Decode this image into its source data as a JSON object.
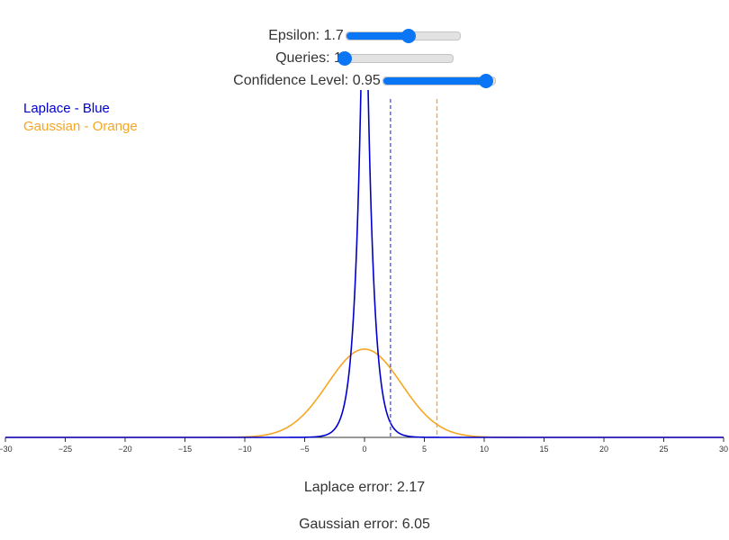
{
  "controls": {
    "epsilon": {
      "label": "Epsilon: ",
      "value": "1.7",
      "min": 0.1,
      "max": 3,
      "current": 1.7
    },
    "queries": {
      "label": "Queries: ",
      "value": "1",
      "min": 1,
      "max": 100,
      "current": 1
    },
    "confidence": {
      "label": "Confidence Level: ",
      "value": "0.95",
      "min": 0.5,
      "max": 0.99,
      "current": 0.95
    }
  },
  "legend": {
    "laplace": "Laplace - Blue",
    "gaussian": "Gaussian - Orange"
  },
  "results": {
    "laplace": "Laplace error: 2.17",
    "gaussian": "Gaussian error: 6.05"
  },
  "colors": {
    "laplace": "#0000cc",
    "laplace_marker": "#4a4aff",
    "gaussian": "#f5a623",
    "accent": "#0a75f5"
  },
  "chart_data": {
    "type": "line",
    "xlim": [
      -30,
      30
    ],
    "x_ticks": [
      -30,
      -25,
      -20,
      -15,
      -10,
      -5,
      0,
      5,
      10,
      15,
      20,
      25,
      30
    ],
    "series": [
      {
        "name": "Laplace - Blue",
        "distribution": "laplace",
        "mean": 0,
        "scale": 0.588
      },
      {
        "name": "Gaussian - Orange",
        "distribution": "gaussian",
        "mean": 0,
        "sigma": 3.09
      }
    ],
    "markers": [
      {
        "series": "Laplace - Blue",
        "x": 2.17,
        "style": "dashed"
      },
      {
        "series": "Gaussian - Orange",
        "x": 6.05,
        "style": "dashed"
      }
    ]
  }
}
